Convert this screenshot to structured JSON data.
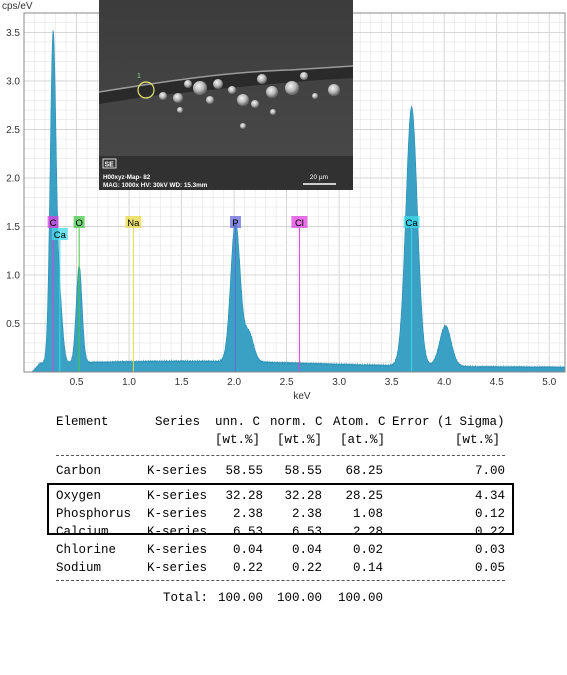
{
  "chart_data": {
    "type": "line",
    "title": "",
    "xlabel": "keV",
    "ylabel": "cps/eV",
    "xlim": [
      0,
      5.15
    ],
    "ylim": [
      0,
      3.7
    ],
    "x_ticks": [
      0.5,
      1.0,
      1.5,
      2.0,
      2.5,
      3.0,
      3.5,
      4.0,
      4.5,
      5.0
    ],
    "x_tick_labels": [
      "0.5",
      "1.0",
      "1.5",
      "2.0",
      "2.5",
      "3.0",
      "3.5",
      "4.0",
      "4.5",
      "5.0"
    ],
    "y_ticks": [
      0.5,
      1.0,
      1.5,
      2.0,
      2.5,
      3.0,
      3.5
    ],
    "y_tick_labels": [
      "0.5",
      "1.0",
      "1.5",
      "2.0",
      "2.5",
      "3.0",
      "3.5"
    ],
    "grid": true,
    "color": "#3aa0c4",
    "peaks": [
      {
        "center": 0.277,
        "height": 3.39
      },
      {
        "center": 0.341,
        "height": 0.6
      },
      {
        "center": 0.525,
        "height": 1.0
      },
      {
        "center": 2.013,
        "height": 1.45
      },
      {
        "center": 2.14,
        "height": 0.3
      },
      {
        "center": 3.69,
        "height": 2.67
      },
      {
        "center": 4.012,
        "height": 0.42
      }
    ],
    "element_markers": [
      {
        "label": "C",
        "kev": 0.277,
        "color": "#e040e0"
      },
      {
        "label": "Ca",
        "kev": 0.341,
        "color": "#40d8e8"
      },
      {
        "label": "O",
        "kev": 0.525,
        "color": "#46c846"
      },
      {
        "label": "Na",
        "kev": 1.041,
        "color": "#e8d840"
      },
      {
        "label": "P",
        "kev": 2.013,
        "color": "#6a6ad8"
      },
      {
        "label": "Cl",
        "kev": 2.622,
        "color": "#e040e0"
      },
      {
        "label": "Ca",
        "kev": 3.69,
        "color": "#40d8e8"
      }
    ]
  },
  "sem_image": {
    "detector_badge": "SE",
    "line1": "H00xyz-Map- 82",
    "line2": "MAG: 1000x  HV: 30kV  WD: 15.3mm",
    "scale_label": "20 µm",
    "marker_label": "1"
  },
  "results_table": {
    "header1": [
      "Element",
      "Series",
      "unn. C",
      "norm. C",
      "Atom. C",
      "Error (1 Sigma)"
    ],
    "header2": [
      "[wt.%]",
      "[wt.%]",
      "[at.%]",
      "[wt.%]"
    ],
    "rows": [
      {
        "element": "Carbon",
        "series": "K-series",
        "unn": "58.55",
        "norm": "58.55",
        "atom": "68.25",
        "error": "7.00"
      },
      {
        "element": "Oxygen",
        "series": "K-series",
        "unn": "32.28",
        "norm": "32.28",
        "atom": "28.25",
        "error": "4.34"
      },
      {
        "element": "Phosphorus",
        "series": "K-series",
        "unn": "2.38",
        "norm": "2.38",
        "atom": "1.08",
        "error": "0.12"
      },
      {
        "element": "Calcium",
        "series": "K-series",
        "unn": "6.53",
        "norm": "6.53",
        "atom": "2.28",
        "error": "0.22"
      },
      {
        "element": "Chlorine",
        "series": "K-series",
        "unn": "0.04",
        "norm": "0.04",
        "atom": "0.02",
        "error": "0.03"
      },
      {
        "element": "Sodium",
        "series": "K-series",
        "unn": "0.22",
        "norm": "0.22",
        "atom": "0.14",
        "error": "0.05"
      }
    ],
    "total_label": "Total:",
    "total_values": [
      "100.00",
      "100.00",
      "100.00"
    ]
  }
}
